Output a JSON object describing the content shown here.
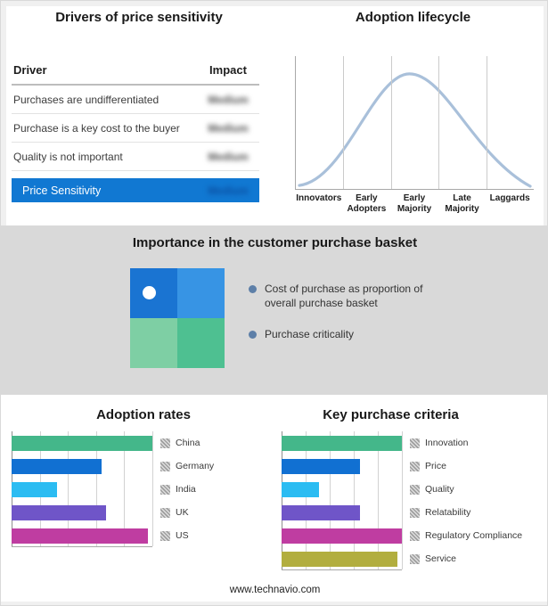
{
  "colors": {
    "highlight_row_bg": "#1178d2",
    "curve": "#a9c0da",
    "legend_bullet": "#5d7fa8",
    "quadrant": {
      "top_left": "#1a74d2",
      "top_right": "#3794e4",
      "bottom_left": "#7ecfa4",
      "bottom_right": "#4ec091"
    }
  },
  "drivers_panel": {
    "title": "Drivers of price sensitivity",
    "columns": [
      "Driver",
      "Impact"
    ],
    "rows": [
      {
        "driver": "Purchases are undifferentiated",
        "impact": "Medium"
      },
      {
        "driver": "Purchase is a key cost to the buyer",
        "impact": "Medium"
      },
      {
        "driver": "Quality is not important",
        "impact": "Medium"
      }
    ],
    "highlight": {
      "driver": "Price Sensitivity",
      "impact": "Medium"
    },
    "impact_note": "impact values appear blurred in source image"
  },
  "lifecycle_panel": {
    "title": "Adoption lifecycle",
    "stages": [
      "Innovators",
      "Early Adopters",
      "Early Majority",
      "Late Majority",
      "Laggards"
    ]
  },
  "basket_panel": {
    "title": "Importance in the customer purchase basket",
    "legend": [
      "Cost of purchase as proportion of overall purchase basket",
      "Purchase criticality"
    ]
  },
  "footer": {
    "url": "www.technavio.com"
  },
  "chart_data": [
    {
      "type": "table",
      "title": "Drivers of price sensitivity",
      "columns": [
        "Driver",
        "Impact"
      ],
      "rows": [
        [
          "Purchases are undifferentiated",
          "Medium"
        ],
        [
          "Purchase is a key cost to the buyer",
          "Medium"
        ],
        [
          "Quality is not important",
          "Medium"
        ],
        [
          "Price Sensitivity",
          "Medium"
        ]
      ]
    },
    {
      "type": "line",
      "title": "Adoption lifecycle",
      "categories": [
        "Innovators",
        "Early Adopters",
        "Early Majority",
        "Late Majority",
        "Laggards"
      ],
      "description": "Unlabeled bell curve spanning the five adoption stages, peak over Early Majority",
      "grid": true,
      "legend_position": "none"
    },
    {
      "type": "bar",
      "title": "Adoption rates",
      "orientation": "horizontal",
      "categories": [
        "China",
        "Germany",
        "India",
        "UK",
        "US"
      ],
      "values": [
        100,
        64,
        32,
        67,
        97
      ],
      "colors": [
        "#44b78a",
        "#1170d2",
        "#2bbcf2",
        "#6f55c8",
        "#bf3da1"
      ],
      "xlim": [
        0,
        100
      ],
      "grid": true,
      "value_note": "bars unlabeled; values estimated as percent of plot width"
    },
    {
      "type": "bar",
      "title": "Key purchase criteria",
      "orientation": "horizontal",
      "categories": [
        "Innovation",
        "Price",
        "Quality",
        "Relatability",
        "Regulatory Compliance",
        "Service"
      ],
      "values": [
        100,
        65,
        31,
        65,
        100,
        96
      ],
      "colors": [
        "#44b78a",
        "#1170d2",
        "#2bbcf2",
        "#6f55c8",
        "#bf3da1",
        "#b2ae3f"
      ],
      "xlim": [
        0,
        100
      ],
      "grid": true,
      "value_note": "bars unlabeled; values estimated as percent of plot width"
    }
  ]
}
